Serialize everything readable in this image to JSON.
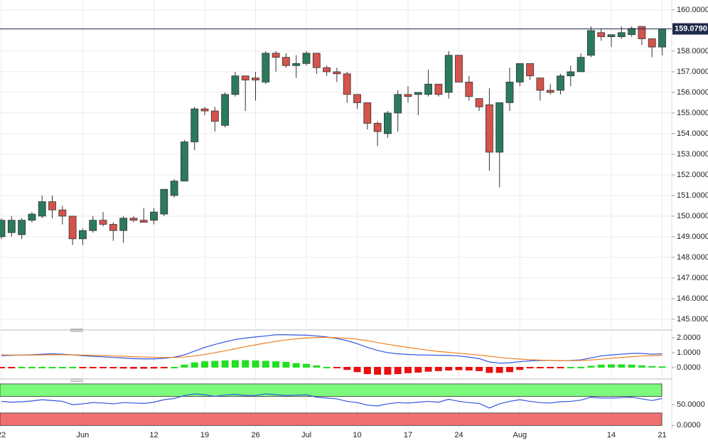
{
  "chart_data": [
    {
      "type": "candlestick",
      "categories": [
        "22",
        null,
        null,
        null,
        null,
        null,
        null,
        null,
        "Jun",
        null,
        null,
        null,
        null,
        null,
        null,
        "12",
        null,
        null,
        null,
        null,
        "19",
        null,
        null,
        null,
        null,
        "26",
        null,
        null,
        null,
        null,
        "Jul",
        null,
        null,
        null,
        null,
        "10",
        null,
        null,
        null,
        null,
        "17",
        null,
        null,
        null,
        null,
        "24",
        null,
        null,
        null,
        null,
        null,
        "Aug",
        null,
        null,
        null,
        null,
        null,
        null,
        null,
        null,
        "14",
        null,
        null,
        null,
        null,
        "21"
      ],
      "open": [
        149.0,
        149.2,
        149.1,
        149.8,
        150.0,
        150.7,
        150.3,
        150.0,
        148.9,
        149.3,
        149.8,
        149.6,
        149.3,
        149.9,
        149.8,
        149.8,
        150.1,
        151.0,
        151.7,
        153.6,
        155.2,
        155.1,
        154.4,
        155.9,
        156.8,
        156.7,
        156.5,
        157.9,
        157.7,
        157.3,
        157.4,
        157.9,
        157.2,
        157.0,
        156.9,
        155.9,
        155.5,
        154.5,
        154.0,
        155.0,
        155.9,
        155.9,
        155.9,
        156.4,
        156.0,
        157.8,
        156.5,
        155.7,
        155.4,
        153.1,
        155.5,
        156.5,
        157.4,
        156.7,
        156.1,
        156.1,
        156.8,
        157.0,
        157.8,
        158.9,
        158.7,
        158.7,
        158.8,
        159.2,
        158.6,
        158.2
      ],
      "high": [
        149.9,
        150.0,
        149.9,
        150.2,
        151.0,
        151.0,
        150.5,
        150.0,
        149.4,
        150.0,
        150.2,
        149.7,
        150.0,
        150.0,
        150.4,
        150.4,
        151.3,
        151.8,
        153.7,
        155.3,
        155.3,
        155.3,
        156.0,
        157.0,
        156.8,
        157.0,
        158.0,
        158.0,
        157.9,
        157.8,
        158.0,
        157.9,
        157.3,
        157.2,
        157.0,
        155.9,
        155.5,
        154.6,
        155.1,
        156.1,
        156.3,
        156.0,
        157.1,
        156.4,
        158.0,
        157.8,
        156.8,
        155.7,
        156.2,
        155.5,
        157.2,
        157.4,
        157.4,
        156.7,
        156.4,
        156.9,
        157.3,
        157.9,
        159.2,
        159.1,
        158.8,
        159.2,
        159.2,
        159.2,
        158.6,
        159.1
      ],
      "low": [
        148.9,
        149.0,
        148.9,
        149.7,
        149.9,
        149.9,
        149.6,
        148.6,
        148.6,
        149.2,
        149.5,
        148.8,
        148.7,
        149.7,
        149.7,
        149.6,
        150.0,
        150.9,
        151.7,
        153.2,
        154.9,
        154.1,
        154.3,
        155.8,
        155.1,
        155.6,
        156.4,
        157.0,
        157.2,
        156.7,
        157.3,
        156.9,
        156.8,
        156.5,
        155.5,
        155.2,
        154.2,
        153.4,
        153.8,
        154.1,
        155.5,
        154.9,
        155.8,
        155.8,
        155.7,
        156.5,
        155.6,
        155.1,
        152.2,
        151.4,
        155.1,
        156.3,
        156.6,
        155.6,
        155.9,
        155.9,
        156.3,
        157.0,
        157.7,
        158.5,
        158.2,
        158.6,
        158.7,
        158.3,
        157.7,
        157.8
      ],
      "close": [
        149.8,
        149.8,
        149.8,
        150.1,
        150.7,
        150.3,
        150.0,
        148.9,
        149.3,
        149.8,
        149.6,
        149.3,
        149.9,
        149.8,
        149.7,
        150.2,
        151.3,
        151.7,
        153.6,
        155.2,
        155.1,
        154.6,
        155.9,
        156.8,
        156.6,
        156.6,
        157.9,
        157.7,
        157.3,
        157.4,
        157.9,
        157.2,
        157.0,
        156.9,
        155.9,
        155.5,
        154.5,
        154.1,
        155.0,
        155.9,
        155.8,
        156.0,
        156.4,
        155.9,
        157.8,
        156.5,
        155.8,
        155.3,
        153.1,
        155.5,
        156.5,
        157.4,
        156.8,
        156.1,
        156.0,
        156.8,
        157.0,
        157.7,
        159.0,
        158.7,
        158.8,
        158.9,
        159.1,
        158.6,
        158.2,
        159.079
      ],
      "up_color": "#2b7a5c",
      "down_color": "#d4534b",
      "last_label": "159.0790",
      "last_color": "#1e2a4a",
      "ylim": [
        144.55,
        160.48
      ],
      "yticks": [
        {
          "value": 145,
          "label": "145.0000"
        },
        {
          "value": 146,
          "label": "146.0000"
        },
        {
          "value": 147,
          "label": "147.0000"
        },
        {
          "value": 148,
          "label": "148.0000"
        },
        {
          "value": 149,
          "label": "149.0000"
        },
        {
          "value": 150,
          "label": "150.0000"
        },
        {
          "value": 151,
          "label": "151.0000"
        },
        {
          "value": 152,
          "label": "152.0000"
        },
        {
          "value": 153,
          "label": "153.0000"
        },
        {
          "value": 154,
          "label": "154.0000"
        },
        {
          "value": 155,
          "label": "155.0000"
        },
        {
          "value": 156,
          "label": "156.0000"
        },
        {
          "value": 157,
          "label": "157.0000"
        },
        {
          "value": 158,
          "label": "158.0000"
        },
        {
          "value": 159,
          "label": "159.0000"
        },
        {
          "value": 160,
          "label": "160.0000"
        }
      ],
      "grid": true
    },
    {
      "type": "macd",
      "lines": [
        {
          "color": "#3355e0",
          "values": [
            0.8,
            0.82,
            0.84,
            0.86,
            0.9,
            0.92,
            0.9,
            0.85,
            0.8,
            0.75,
            0.72,
            0.68,
            0.64,
            0.6,
            0.58,
            0.58,
            0.62,
            0.7,
            0.85,
            1.1,
            1.35,
            1.55,
            1.72,
            1.88,
            1.98,
            2.05,
            2.12,
            2.2,
            2.2,
            2.18,
            2.17,
            2.12,
            2.05,
            1.95,
            1.8,
            1.6,
            1.35,
            1.15,
            1.0,
            0.92,
            0.88,
            0.85,
            0.84,
            0.82,
            0.82,
            0.78,
            0.7,
            0.6,
            0.38,
            0.3,
            0.32,
            0.4,
            0.45,
            0.48,
            0.48,
            0.46,
            0.48,
            0.52,
            0.65,
            0.78,
            0.85,
            0.9,
            0.95,
            0.95,
            0.9,
            0.92
          ]
        },
        {
          "color": "#f08020",
          "values": [
            0.85,
            0.84,
            0.84,
            0.84,
            0.85,
            0.86,
            0.86,
            0.85,
            0.84,
            0.82,
            0.8,
            0.78,
            0.76,
            0.73,
            0.71,
            0.69,
            0.68,
            0.68,
            0.71,
            0.78,
            0.88,
            1.0,
            1.12,
            1.26,
            1.4,
            1.52,
            1.64,
            1.76,
            1.85,
            1.93,
            1.98,
            2.02,
            2.02,
            2.0,
            1.96,
            1.9,
            1.8,
            1.68,
            1.56,
            1.45,
            1.35,
            1.25,
            1.16,
            1.08,
            1.02,
            0.96,
            0.9,
            0.84,
            0.76,
            0.68,
            0.62,
            0.57,
            0.53,
            0.5,
            0.48,
            0.47,
            0.47,
            0.48,
            0.51,
            0.56,
            0.62,
            0.68,
            0.73,
            0.78,
            0.8,
            0.82
          ]
        }
      ],
      "histogram": {
        "up_color": "#22e022",
        "down_color": "#e81010",
        "values": [
          -0.03,
          -0.02,
          0.0,
          0.01,
          0.03,
          0.04,
          0.03,
          0.0,
          -0.04,
          -0.07,
          -0.08,
          -0.1,
          -0.11,
          -0.12,
          -0.12,
          -0.11,
          -0.08,
          0.05,
          0.2,
          0.35,
          0.42,
          0.45,
          0.48,
          0.5,
          0.5,
          0.48,
          0.45,
          0.42,
          0.38,
          0.3,
          0.25,
          0.15,
          0.05,
          -0.05,
          -0.2,
          -0.35,
          -0.48,
          -0.52,
          -0.52,
          -0.48,
          -0.42,
          -0.38,
          -0.32,
          -0.28,
          -0.24,
          -0.22,
          -0.24,
          -0.28,
          -0.4,
          -0.4,
          -0.35,
          -0.2,
          -0.1,
          -0.05,
          -0.03,
          -0.02,
          0.0,
          0.05,
          0.12,
          0.2,
          0.22,
          0.22,
          0.2,
          0.15,
          0.1,
          0.08
        ]
      },
      "ylim": [
        -0.62,
        2.33
      ],
      "yticks": [
        {
          "value": 0,
          "label": "0.0000"
        },
        {
          "value": 1,
          "label": "1.0000"
        },
        {
          "value": 2,
          "label": "2.0000"
        }
      ]
    },
    {
      "type": "rsi",
      "color": "#3355e0",
      "values": [
        58,
        56,
        57,
        59,
        62,
        60,
        58,
        50,
        52,
        55,
        54,
        52,
        55,
        54,
        53,
        56,
        62,
        65,
        72,
        76,
        74,
        70,
        73,
        75,
        72,
        72,
        76,
        74,
        72,
        73,
        74,
        68,
        66,
        64,
        58,
        55,
        49,
        47,
        52,
        55,
        54,
        56,
        58,
        56,
        63,
        58,
        55,
        53,
        42,
        52,
        58,
        62,
        58,
        55,
        54,
        57,
        58,
        61,
        68,
        66,
        66,
        67,
        68,
        64,
        60,
        65
      ],
      "zones": [
        {
          "from": 70,
          "to": 100,
          "color": "#7cfa7c"
        },
        {
          "from": 0,
          "to": 30,
          "color": "#f07070"
        }
      ],
      "ylim": [
        -8,
        105
      ],
      "yticks": [
        {
          "value": 0,
          "label": "0.0000"
        },
        {
          "value": 50,
          "label": "50.0000"
        }
      ]
    }
  ]
}
